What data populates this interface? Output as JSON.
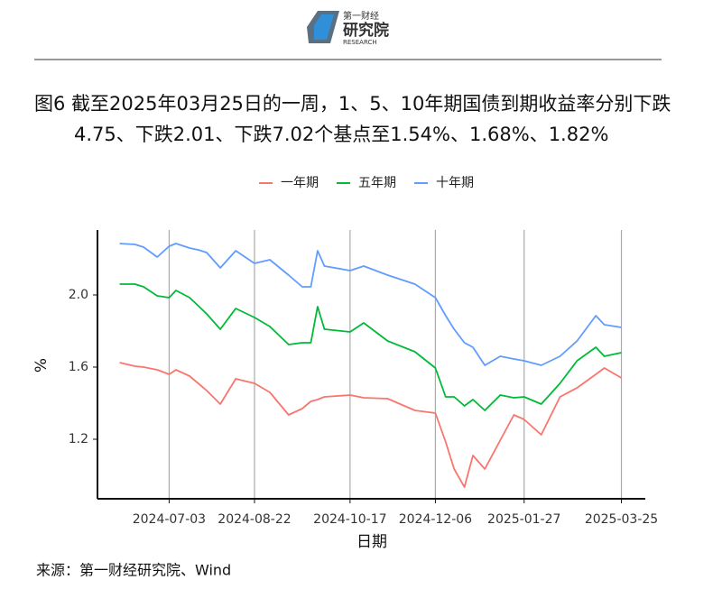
{
  "header": {
    "logo_top": "第一财经",
    "logo_main": "研究院",
    "logo_sub": "RESEARCH"
  },
  "chart_data": {
    "type": "line",
    "title": "图6  截至2025年03月25日的一周，1、5、10年期国债到期收益率分别下跌4.75、下跌2.01、下跌7.02个基点至1.54%、1.68%、1.82%",
    "x_label": "日期",
    "y_label": "%",
    "x": [
      "2024-06-04",
      "2024-06-13",
      "2024-06-18",
      "2024-06-26",
      "2024-07-03",
      "2024-07-07",
      "2024-07-15",
      "2024-07-20",
      "2024-07-25",
      "2024-08-02",
      "2024-08-11",
      "2024-08-22",
      "2024-08-31",
      "2024-09-11",
      "2024-09-19",
      "2024-09-24",
      "2024-09-28",
      "2024-10-02",
      "2024-10-17",
      "2024-10-25",
      "2024-11-08",
      "2024-11-24",
      "2024-12-06",
      "2024-12-12",
      "2024-12-17",
      "2024-12-23",
      "2024-12-28",
      "2025-01-04",
      "2025-01-13",
      "2025-01-21",
      "2025-01-27",
      "2025-02-06",
      "2025-02-17",
      "2025-02-27",
      "2025-03-10",
      "2025-03-15",
      "2025-03-25"
    ],
    "series": [
      {
        "name": "一年期",
        "color": "#F8766D",
        "values": [
          1.625,
          1.605,
          1.6,
          1.585,
          1.56,
          1.585,
          1.55,
          1.51,
          1.47,
          1.395,
          1.535,
          1.51,
          1.46,
          1.335,
          1.37,
          1.41,
          1.42,
          1.435,
          1.445,
          1.43,
          1.425,
          1.36,
          1.345,
          1.185,
          1.035,
          0.935,
          1.11,
          1.035,
          1.195,
          1.335,
          1.31,
          1.225,
          1.435,
          1.485,
          1.56,
          1.595,
          1.54
        ]
      },
      {
        "name": "五年期",
        "color": "#00BA38",
        "values": [
          2.06,
          2.06,
          2.045,
          1.995,
          1.985,
          2.025,
          1.985,
          1.94,
          1.895,
          1.81,
          1.925,
          1.875,
          1.825,
          1.725,
          1.735,
          1.735,
          1.935,
          1.81,
          1.795,
          1.845,
          1.745,
          1.685,
          1.595,
          1.435,
          1.435,
          1.385,
          1.42,
          1.36,
          1.445,
          1.43,
          1.435,
          1.395,
          1.51,
          1.635,
          1.71,
          1.66,
          1.68
        ]
      },
      {
        "name": "十年期",
        "color": "#619CFF",
        "values": [
          2.285,
          2.28,
          2.265,
          2.21,
          2.27,
          2.285,
          2.26,
          2.25,
          2.235,
          2.15,
          2.245,
          2.175,
          2.195,
          2.11,
          2.045,
          2.045,
          2.245,
          2.16,
          2.135,
          2.16,
          2.11,
          2.06,
          1.985,
          1.885,
          1.81,
          1.735,
          1.71,
          1.61,
          1.66,
          1.645,
          1.635,
          1.61,
          1.66,
          1.745,
          1.885,
          1.835,
          1.82
        ]
      }
    ],
    "xlim": [
      "2024-05-22",
      "2025-04-08"
    ],
    "xticks": [
      "2024-07-03",
      "2024-08-22",
      "2024-10-17",
      "2024-12-06",
      "2025-01-27",
      "2025-03-25"
    ],
    "ylim": [
      0.87,
      2.36
    ],
    "yticks": [
      {
        "value": 1.2,
        "label": "1.2"
      },
      {
        "value": 1.6,
        "label": "1.6"
      },
      {
        "value": 2,
        "label": "2.0"
      }
    ],
    "grid": "x",
    "legend": "top"
  },
  "source": "来源：第一财经研究院、Wind"
}
